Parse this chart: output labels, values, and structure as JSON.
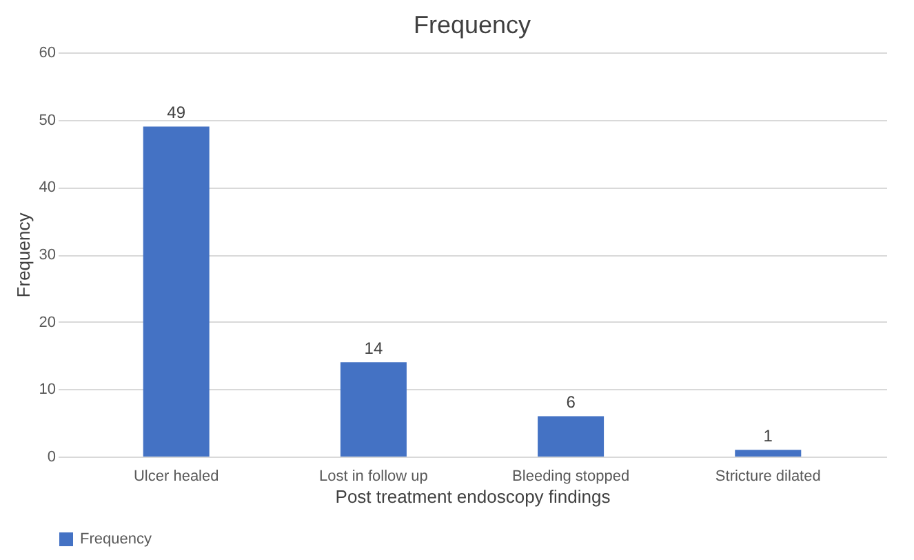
{
  "chart_data": {
    "type": "bar",
    "title": "Frequency",
    "xlabel": "Post treatment endoscopy findings",
    "ylabel": "Frequency",
    "categories": [
      "Ulcer healed",
      "Lost in follow up",
      "Bleeding stopped",
      "Stricture dilated"
    ],
    "series": [
      {
        "name": "Frequency",
        "color": "#4472c4",
        "values": [
          49,
          14,
          6,
          1
        ]
      }
    ],
    "ylim": [
      0,
      60
    ],
    "yticks": [
      0,
      10,
      20,
      30,
      40,
      50,
      60
    ],
    "grid": "y",
    "legend": "bottom",
    "data_labels": true
  }
}
